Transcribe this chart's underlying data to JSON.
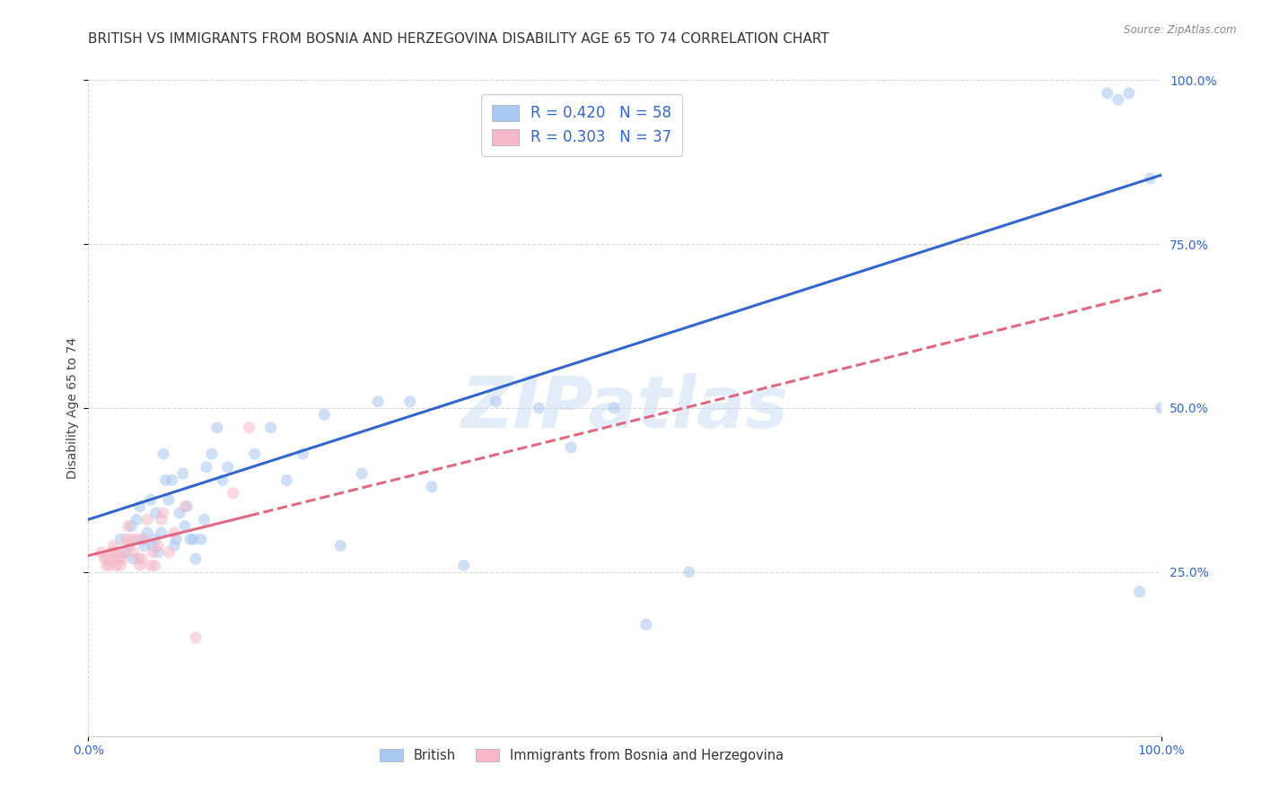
{
  "title": "BRITISH VS IMMIGRANTS FROM BOSNIA AND HERZEGOVINA DISABILITY AGE 65 TO 74 CORRELATION CHART",
  "source": "Source: ZipAtlas.com",
  "xlabel": "",
  "ylabel": "Disability Age 65 to 74",
  "watermark": "ZIPatlas",
  "legend_british": "British",
  "legend_immigrants": "Immigrants from Bosnia and Herzegovina",
  "R_british": 0.42,
  "N_british": 58,
  "R_immigrants": 0.303,
  "N_immigrants": 37,
  "color_british": "#a8c8f0",
  "color_immigrants": "#f5b8c8",
  "line_color_british": "#3366cc",
  "line_color_immigrants": "#e06880",
  "british_x": [
    0.03,
    0.035,
    0.04,
    0.042,
    0.045,
    0.048,
    0.05,
    0.052,
    0.055,
    0.058,
    0.06,
    0.062,
    0.063,
    0.065,
    0.068,
    0.07,
    0.072,
    0.075,
    0.078,
    0.08,
    0.082,
    0.085,
    0.088,
    0.09,
    0.092,
    0.095,
    0.098,
    0.1,
    0.105,
    0.108,
    0.11,
    0.115,
    0.12,
    0.125,
    0.13,
    0.155,
    0.17,
    0.185,
    0.2,
    0.22,
    0.235,
    0.255,
    0.27,
    0.3,
    0.32,
    0.35,
    0.38,
    0.42,
    0.45,
    0.49,
    0.52,
    0.56,
    0.95,
    0.96,
    0.97,
    0.98,
    0.99,
    1.0
  ],
  "british_y": [
    0.3,
    0.28,
    0.32,
    0.27,
    0.33,
    0.35,
    0.3,
    0.29,
    0.31,
    0.36,
    0.29,
    0.3,
    0.34,
    0.28,
    0.31,
    0.43,
    0.39,
    0.36,
    0.39,
    0.29,
    0.3,
    0.34,
    0.4,
    0.32,
    0.35,
    0.3,
    0.3,
    0.27,
    0.3,
    0.33,
    0.41,
    0.43,
    0.47,
    0.39,
    0.41,
    0.43,
    0.47,
    0.39,
    0.43,
    0.49,
    0.29,
    0.4,
    0.51,
    0.51,
    0.38,
    0.26,
    0.51,
    0.5,
    0.44,
    0.5,
    0.17,
    0.25,
    0.98,
    0.97,
    0.98,
    0.22,
    0.85,
    0.5
  ],
  "immigrants_x": [
    0.012,
    0.015,
    0.017,
    0.018,
    0.02,
    0.022,
    0.023,
    0.024,
    0.025,
    0.026,
    0.028,
    0.03,
    0.032,
    0.033,
    0.035,
    0.037,
    0.038,
    0.04,
    0.042,
    0.045,
    0.047,
    0.048,
    0.05,
    0.052,
    0.055,
    0.058,
    0.06,
    0.062,
    0.065,
    0.068,
    0.07,
    0.075,
    0.08,
    0.09,
    0.1,
    0.135,
    0.15
  ],
  "immigrants_y": [
    0.28,
    0.27,
    0.26,
    0.27,
    0.26,
    0.28,
    0.29,
    0.27,
    0.28,
    0.26,
    0.27,
    0.26,
    0.27,
    0.28,
    0.3,
    0.32,
    0.29,
    0.3,
    0.28,
    0.3,
    0.27,
    0.26,
    0.27,
    0.3,
    0.33,
    0.26,
    0.28,
    0.26,
    0.29,
    0.33,
    0.34,
    0.28,
    0.31,
    0.35,
    0.15,
    0.37,
    0.47
  ],
  "xlim": [
    0.0,
    1.0
  ],
  "ylim": [
    0.0,
    1.0
  ],
  "xticks": [
    0.0,
    1.0
  ],
  "xtick_labels": [
    "0.0%",
    "100.0%"
  ],
  "yticks": [
    0.25,
    0.5,
    0.75,
    1.0
  ],
  "ytick_labels": [
    "25.0%",
    "50.0%",
    "75.0%",
    "100.0%"
  ],
  "grid_color": "#d8d8d8",
  "background_color": "#ffffff",
  "title_fontsize": 11,
  "axis_label_fontsize": 10,
  "tick_fontsize": 10,
  "marker_size": 90,
  "marker_alpha": 0.55,
  "line_width": 2.2,
  "brit_line_x0": 0.0,
  "brit_line_y0": 0.33,
  "brit_line_x1": 1.0,
  "brit_line_y1": 0.855,
  "immig_line_x0": 0.0,
  "immig_line_y0": 0.275,
  "immig_line_x1": 1.0,
  "immig_line_y1": 0.68
}
